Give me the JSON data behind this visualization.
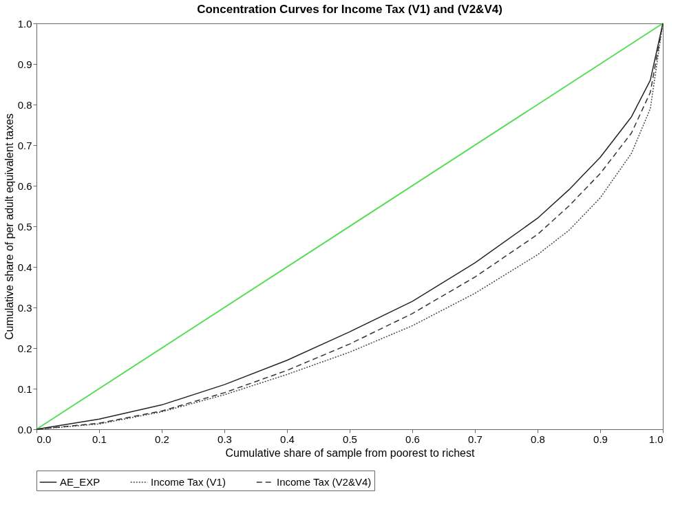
{
  "chart_data": {
    "type": "line",
    "title": "Concentration Curves for Income Tax (V1) and (V2&V4)",
    "xlabel": "Cumulative share of sample from poorest to richest",
    "ylabel": "Cumulative share of per adult equivalent taxes",
    "xlim": [
      0,
      1
    ],
    "ylim": [
      0,
      1
    ],
    "xticks": [
      {
        "value": 0,
        "label": "0.0"
      },
      0.1,
      0.2,
      0.3,
      0.4,
      0.5,
      0.6,
      0.7,
      0.8,
      0.9,
      {
        "value": 1,
        "label": "1.0"
      }
    ],
    "yticks": [
      {
        "value": 0,
        "label": "0.0"
      },
      0.1,
      0.2,
      0.3,
      0.4,
      0.5,
      0.6,
      0.7,
      0.8,
      0.9,
      {
        "value": 1,
        "label": "1.0"
      }
    ],
    "grid": false,
    "legend": "bottom",
    "marker": "none",
    "series": [
      {
        "color": "#55dd55",
        "line_style": "solid",
        "x": [
          0,
          1
        ],
        "values": [
          0,
          1
        ]
      },
      {
        "name": "AE_EXP",
        "color": "#222222",
        "line_style": "solid",
        "x": [
          0,
          0.1,
          0.2,
          0.3,
          0.4,
          0.5,
          0.6,
          0.7,
          0.8,
          0.85,
          0.9,
          0.95,
          0.98,
          1.0
        ],
        "values": [
          0,
          0.025,
          0.06,
          0.11,
          0.17,
          0.24,
          0.315,
          0.41,
          0.52,
          0.59,
          0.67,
          0.77,
          0.86,
          1.0
        ]
      },
      {
        "name": "Income Tax (V1)",
        "color": "#444444",
        "line_style": "dotted",
        "x": [
          0,
          0.1,
          0.2,
          0.3,
          0.4,
          0.5,
          0.6,
          0.7,
          0.8,
          0.85,
          0.9,
          0.95,
          0.98,
          1.0
        ],
        "values": [
          0,
          0.013,
          0.043,
          0.085,
          0.135,
          0.19,
          0.255,
          0.335,
          0.43,
          0.49,
          0.57,
          0.68,
          0.79,
          1.0
        ]
      },
      {
        "name": "Income Tax (V2&V4)",
        "color": "#333333",
        "line_style": "dashed",
        "x": [
          0,
          0.1,
          0.2,
          0.3,
          0.4,
          0.5,
          0.6,
          0.7,
          0.8,
          0.85,
          0.9,
          0.95,
          0.98,
          1.0
        ],
        "values": [
          0,
          0.015,
          0.045,
          0.09,
          0.145,
          0.21,
          0.285,
          0.375,
          0.48,
          0.55,
          0.63,
          0.73,
          0.83,
          1.0
        ]
      }
    ]
  }
}
